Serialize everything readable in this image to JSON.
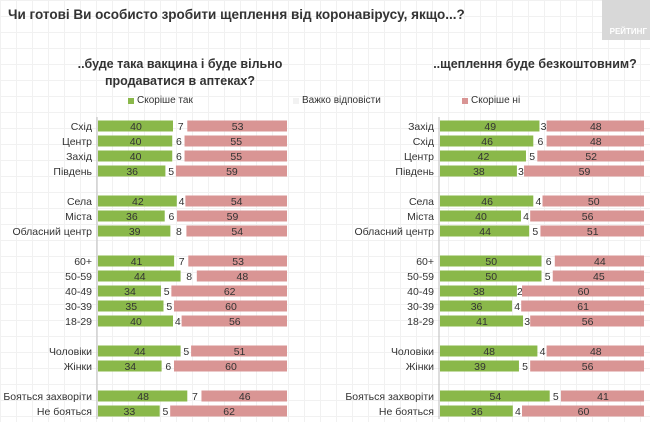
{
  "title": "Чи готові Ви особисто зробити щеплення від коронавірусу, якщо...?",
  "logo_text": "РЕЙТИНГ",
  "legend": [
    {
      "label": "Скоріше так",
      "color": "#8ab84a"
    },
    {
      "label": "Важко відповісти",
      "color": "#f2f2f2"
    },
    {
      "label": "Скоріше ні",
      "color": "#d99594"
    }
  ],
  "chart_data": [
    {
      "type": "bar",
      "stacked": true,
      "orientation": "horizontal",
      "title": "..буде така вакцина і буде вільно продаватися в аптеках?",
      "series_names": [
        "Скоріше так",
        "Важко відповісти",
        "Скоріше ні"
      ],
      "groups": [
        [
          {
            "label": "Схід",
            "values": [
              40,
              7,
              53
            ]
          },
          {
            "label": "Центр",
            "values": [
              40,
              6,
              55
            ]
          },
          {
            "label": "Захід",
            "values": [
              40,
              6,
              55
            ]
          },
          {
            "label": "Південь",
            "values": [
              36,
              5,
              59
            ]
          }
        ],
        [
          {
            "label": "Села",
            "values": [
              42,
              4,
              54
            ]
          },
          {
            "label": "Міста",
            "values": [
              36,
              6,
              59
            ]
          },
          {
            "label": "Обласний центр",
            "values": [
              39,
              8,
              54
            ]
          }
        ],
        [
          {
            "label": "60+",
            "values": [
              41,
              7,
              53
            ]
          },
          {
            "label": "50-59",
            "values": [
              44,
              8,
              48
            ]
          },
          {
            "label": "40-49",
            "values": [
              34,
              5,
              62
            ]
          },
          {
            "label": "30-39",
            "values": [
              35,
              5,
              60
            ]
          },
          {
            "label": "18-29",
            "values": [
              40,
              4,
              56
            ]
          }
        ],
        [
          {
            "label": "Чоловіки",
            "values": [
              44,
              5,
              51
            ]
          },
          {
            "label": "Жінки",
            "values": [
              34,
              6,
              60
            ]
          }
        ],
        [
          {
            "label": "Бояться захворіти",
            "values": [
              48,
              7,
              46
            ]
          },
          {
            "label": "Не бояться",
            "values": [
              33,
              5,
              62
            ]
          }
        ]
      ]
    },
    {
      "type": "bar",
      "stacked": true,
      "orientation": "horizontal",
      "title": "..щеплення буде безкоштовним?",
      "series_names": [
        "Скоріше так",
        "Важко відповісти",
        "Скоріше ні"
      ],
      "groups": [
        [
          {
            "label": "Захід",
            "values": [
              49,
              3,
              48
            ]
          },
          {
            "label": "Схід",
            "values": [
              46,
              6,
              48
            ]
          },
          {
            "label": "Центр",
            "values": [
              42,
              5,
              52
            ]
          },
          {
            "label": "Південь",
            "values": [
              38,
              3,
              59
            ]
          }
        ],
        [
          {
            "label": "Села",
            "values": [
              46,
              4,
              50
            ]
          },
          {
            "label": "Міста",
            "values": [
              40,
              4,
              56
            ]
          },
          {
            "label": "Обласний центр",
            "values": [
              44,
              5,
              51
            ]
          }
        ],
        [
          {
            "label": "60+",
            "values": [
              50,
              6,
              44
            ]
          },
          {
            "label": "50-59",
            "values": [
              50,
              5,
              45
            ]
          },
          {
            "label": "40-49",
            "values": [
              38,
              2,
              60
            ]
          },
          {
            "label": "30-39",
            "values": [
              36,
              4,
              61
            ]
          },
          {
            "label": "18-29",
            "values": [
              41,
              3,
              56
            ]
          }
        ],
        [
          {
            "label": "Чоловіки",
            "values": [
              48,
              4,
              48
            ]
          },
          {
            "label": "Жінки",
            "values": [
              39,
              5,
              56
            ]
          }
        ],
        [
          {
            "label": "Бояться захворіти",
            "values": [
              54,
              5,
              41
            ]
          },
          {
            "label": "Не бояться",
            "values": [
              36,
              4,
              60
            ]
          }
        ]
      ]
    }
  ]
}
